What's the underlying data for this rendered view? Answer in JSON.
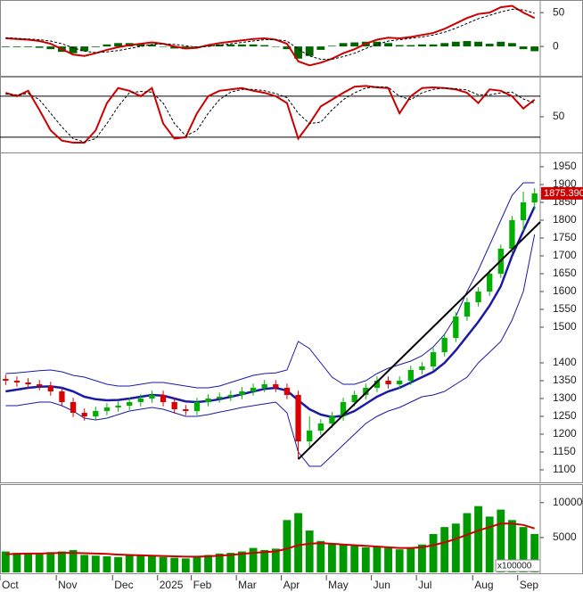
{
  "chart_data": [
    {
      "type": "line",
      "ylim": [
        -42,
        66
      ],
      "yticks": [
        0,
        50
      ],
      "series": [
        {
          "style": "bar",
          "color": "#006400",
          "values": [
            -1,
            -1,
            -1,
            -2,
            -4,
            -8,
            -10,
            -7,
            -1,
            3,
            5,
            5,
            4,
            3,
            0,
            -3,
            -4,
            -1,
            2,
            3,
            3,
            3,
            3,
            2,
            0,
            -4,
            -18,
            -14,
            -5,
            1,
            5,
            6,
            7,
            7,
            5,
            2,
            2,
            3,
            3,
            5,
            7,
            8,
            7,
            4,
            7,
            5,
            -4,
            -7
          ]
        },
        {
          "style": "line",
          "color": "#cc0000",
          "values": [
            12,
            11,
            10,
            8,
            4,
            -4,
            -12,
            -14,
            -10,
            -5,
            -1,
            2,
            4,
            6,
            4,
            0,
            -3,
            -2,
            2,
            5,
            7,
            9,
            11,
            12,
            10,
            4,
            -22,
            -28,
            -24,
            -18,
            -10,
            -4,
            4,
            10,
            13,
            12,
            14,
            17,
            20,
            26,
            34,
            42,
            48,
            50,
            58,
            60,
            50,
            42
          ]
        },
        {
          "style": "dashed",
          "color": "#000000",
          "values": [
            13,
            12,
            11,
            10,
            8,
            4,
            -2,
            -7,
            -9,
            -8,
            -6,
            -3,
            0,
            3,
            4,
            3,
            1,
            -1,
            0,
            2,
            4,
            6,
            8,
            10,
            10,
            8,
            -4,
            -14,
            -19,
            -19,
            -15,
            -10,
            -3,
            3,
            8,
            10,
            12,
            14,
            17,
            21,
            27,
            34,
            41,
            46,
            51,
            55,
            54,
            49
          ]
        }
      ]
    },
    {
      "type": "line",
      "ylim": [
        -1,
        106
      ],
      "yticks": [
        50
      ],
      "levels": [
        80,
        20
      ],
      "series": [
        {
          "style": "line",
          "color": "#cc0000",
          "values": [
            85,
            80,
            88,
            60,
            30,
            15,
            12,
            12,
            30,
            70,
            92,
            88,
            80,
            92,
            40,
            18,
            20,
            55,
            80,
            88,
            90,
            92,
            88,
            85,
            80,
            70,
            18,
            40,
            65,
            75,
            85,
            94,
            95,
            93,
            92,
            55,
            80,
            92,
            93,
            92,
            90,
            85,
            70,
            90,
            88,
            80,
            62,
            75
          ]
        },
        {
          "style": "dashed",
          "color": "#000000",
          "values": [
            83,
            82,
            84,
            75,
            55,
            35,
            18,
            13,
            18,
            40,
            65,
            85,
            87,
            86,
            70,
            40,
            22,
            30,
            55,
            75,
            86,
            90,
            90,
            88,
            84,
            78,
            55,
            40,
            42,
            60,
            75,
            85,
            92,
            94,
            93,
            80,
            75,
            85,
            90,
            92,
            91,
            89,
            82,
            82,
            85,
            86,
            76,
            70
          ]
        }
      ]
    },
    {
      "type": "candlestick",
      "ylim": [
        1067.5,
        1985
      ],
      "yticks": [
        1100,
        1150,
        1200,
        1250,
        1300,
        1350,
        1400,
        1500,
        1550,
        1600,
        1650,
        1700,
        1750,
        1800,
        1850,
        1900,
        1950
      ],
      "up_color": "#00b000",
      "down_color": "#dd0000",
      "open": [
        1355,
        1350,
        1345,
        1340,
        1335,
        1320,
        1290,
        1260,
        1250,
        1265,
        1275,
        1280,
        1290,
        1300,
        1310,
        1290,
        1270,
        1265,
        1290,
        1300,
        1305,
        1310,
        1320,
        1330,
        1340,
        1330,
        1310,
        1180,
        1210,
        1230,
        1250,
        1290,
        1310,
        1330,
        1350,
        1340,
        1350,
        1380,
        1390,
        1430,
        1470,
        1530,
        1570,
        1600,
        1650,
        1720,
        1800,
        1850
      ],
      "high": [
        1367,
        1362,
        1357,
        1352,
        1347,
        1332,
        1302,
        1272,
        1277,
        1287,
        1292,
        1302,
        1312,
        1322,
        1322,
        1302,
        1282,
        1302,
        1312,
        1317,
        1322,
        1332,
        1342,
        1352,
        1352,
        1342,
        1322,
        1250,
        1242,
        1262,
        1302,
        1322,
        1342,
        1362,
        1362,
        1362,
        1392,
        1402,
        1442,
        1482,
        1542,
        1582,
        1612,
        1662,
        1732,
        1812,
        1880,
        1890
      ],
      "low": [
        1338,
        1333,
        1328,
        1323,
        1308,
        1278,
        1248,
        1238,
        1238,
        1253,
        1263,
        1268,
        1278,
        1288,
        1278,
        1258,
        1253,
        1253,
        1278,
        1288,
        1293,
        1298,
        1308,
        1318,
        1318,
        1298,
        1130,
        1160,
        1198,
        1218,
        1238,
        1278,
        1298,
        1318,
        1328,
        1328,
        1338,
        1368,
        1378,
        1418,
        1458,
        1518,
        1558,
        1588,
        1638,
        1708,
        1770,
        1830
      ],
      "close": [
        1350,
        1345,
        1340,
        1335,
        1320,
        1290,
        1260,
        1250,
        1265,
        1275,
        1280,
        1290,
        1300,
        1310,
        1290,
        1270,
        1265,
        1290,
        1300,
        1305,
        1310,
        1320,
        1330,
        1340,
        1330,
        1310,
        1180,
        1210,
        1230,
        1250,
        1290,
        1310,
        1330,
        1350,
        1340,
        1350,
        1380,
        1390,
        1430,
        1470,
        1530,
        1570,
        1600,
        1650,
        1720,
        1800,
        1850,
        1875.39
      ],
      "last_label": "1875.390",
      "last_color": "#cc0000",
      "series": [
        {
          "color": "#1a1aa6",
          "width": 2.5,
          "values": [
            1320,
            1325,
            1330,
            1333,
            1334,
            1330,
            1320,
            1305,
            1298,
            1295,
            1296,
            1300,
            1305,
            1310,
            1308,
            1300,
            1292,
            1290,
            1293,
            1298,
            1305,
            1312,
            1320,
            1327,
            1330,
            1322,
            1295,
            1270,
            1255,
            1248,
            1252,
            1265,
            1285,
            1305,
            1320,
            1330,
            1345,
            1360,
            1375,
            1400,
            1435,
            1475,
            1515,
            1560,
            1615,
            1700,
            1770,
            1838
          ]
        },
        {
          "color": "#1a1aa6",
          "width": 1,
          "values": [
            1370,
            1372,
            1375,
            1378,
            1380,
            1375,
            1365,
            1360,
            1350,
            1340,
            1335,
            1335,
            1340,
            1345,
            1345,
            1340,
            1335,
            1330,
            1330,
            1335,
            1345,
            1355,
            1365,
            1370,
            1372,
            1380,
            1460,
            1440,
            1400,
            1360,
            1340,
            1340,
            1350,
            1370,
            1385,
            1395,
            1405,
            1420,
            1445,
            1480,
            1530,
            1600,
            1660,
            1730,
            1800,
            1870,
            1905,
            1905
          ]
        },
        {
          "color": "#1a1aa6",
          "width": 1,
          "values": [
            1280,
            1280,
            1285,
            1290,
            1290,
            1280,
            1265,
            1245,
            1240,
            1245,
            1255,
            1265,
            1270,
            1275,
            1270,
            1260,
            1250,
            1250,
            1255,
            1262,
            1268,
            1275,
            1280,
            1285,
            1290,
            1260,
            1150,
            1110,
            1110,
            1140,
            1170,
            1200,
            1230,
            1250,
            1265,
            1275,
            1290,
            1305,
            1310,
            1320,
            1340,
            1360,
            1400,
            1430,
            1460,
            1520,
            1600,
            1760
          ]
        }
      ],
      "trendline": {
        "color": "#000000",
        "x": [
          26,
          47.5
        ],
        "values": [
          1130,
          1795
        ]
      }
    },
    {
      "type": "bar",
      "ylim": [
        0,
        12400
      ],
      "yticks": [
        5000,
        10000
      ],
      "unit_label": "x100000",
      "color": "#009900",
      "categories": [
        "Oct",
        null,
        null,
        null,
        null,
        "Nov",
        null,
        null,
        null,
        null,
        "Dec",
        null,
        null,
        null,
        "2025",
        null,
        null,
        "Feb",
        null,
        null,
        null,
        "Mar",
        null,
        null,
        null,
        "Apr",
        null,
        null,
        null,
        "May",
        null,
        null,
        null,
        "Jun",
        null,
        null,
        null,
        "Jul",
        null,
        null,
        null,
        null,
        "Aug",
        null,
        null,
        null,
        "Sep",
        null
      ],
      "values": [
        3000,
        2800,
        2700,
        2600,
        2900,
        3000,
        3200,
        2500,
        2400,
        2300,
        2200,
        2600,
        2400,
        2300,
        2200,
        2100,
        2000,
        2200,
        2500,
        2700,
        2800,
        3000,
        3500,
        3200,
        3400,
        7500,
        8500,
        6000,
        4500,
        4200,
        4000,
        3800,
        3600,
        3700,
        3500,
        3300,
        3600,
        4000,
        5500,
        6500,
        7000,
        8500,
        9500,
        8000,
        9000,
        7500,
        6500,
        5500
      ],
      "line": {
        "color": "#cc0000",
        "values": [
          2600,
          2650,
          2700,
          2700,
          2750,
          2800,
          2800,
          2750,
          2700,
          2650,
          2550,
          2500,
          2450,
          2400,
          2350,
          2300,
          2250,
          2250,
          2300,
          2400,
          2500,
          2650,
          2800,
          2900,
          3000,
          3400,
          3900,
          4100,
          4200,
          4100,
          4000,
          3900,
          3800,
          3700,
          3600,
          3500,
          3500,
          3600,
          3900,
          4300,
          4800,
          5400,
          6000,
          6500,
          7000,
          7000,
          6800,
          6300
        ]
      }
    }
  ]
}
